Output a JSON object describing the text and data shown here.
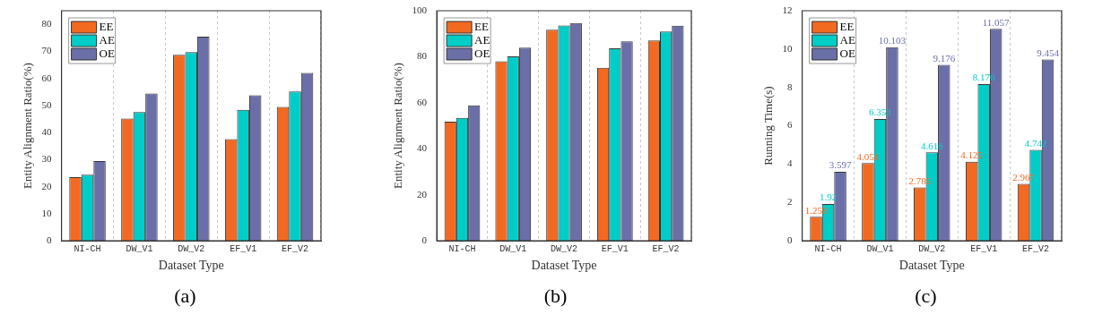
{
  "chart_data": [
    {
      "type": "bar",
      "xlabel": "Dataset Type",
      "ylabel": "Entity Alignment Ratio(%)",
      "categories": [
        "NI-CH",
        "DW_V1",
        "DW_V2",
        "EF_V1",
        "EF_V2"
      ],
      "series": [
        {
          "name": "EE",
          "color": "#f26a21",
          "values": [
            23.5,
            45.2,
            68.7,
            37.6,
            49.5
          ]
        },
        {
          "name": "AE",
          "color": "#00cdc8",
          "values": [
            24.4,
            47.6,
            69.7,
            48.4,
            55.2
          ]
        },
        {
          "name": "OE",
          "color": "#6b6fa8",
          "values": [
            29.5,
            54.4,
            75.4,
            53.8,
            62.0
          ]
        }
      ],
      "ylim": [
        0,
        85
      ],
      "yticks": [
        0,
        10,
        20,
        30,
        40,
        50,
        60,
        70,
        80
      ],
      "grid": "x",
      "legend": "top left",
      "annotations": [
        "(a)"
      ]
    },
    {
      "type": "bar",
      "xlabel": "Dataset Type",
      "ylabel": "Entity Alignment Ratio(%)",
      "categories": [
        "NI-CH",
        "DW_V1",
        "DW_V2",
        "EF_V1",
        "EF_V2"
      ],
      "series": [
        {
          "name": "EE",
          "color": "#f26a21",
          "values": [
            51.8,
            78.0,
            91.7,
            75.2,
            87.1
          ]
        },
        {
          "name": "AE",
          "color": "#00cdc8",
          "values": [
            53.4,
            80.2,
            93.6,
            83.7,
            91.0
          ]
        },
        {
          "name": "OE",
          "color": "#6b6fa8",
          "values": [
            58.9,
            84.0,
            94.7,
            86.7,
            93.5
          ]
        }
      ],
      "ylim": [
        0,
        100
      ],
      "yticks": [
        0,
        20,
        40,
        60,
        80,
        100
      ],
      "grid": "x",
      "legend": "top left",
      "annotations": [
        "(b)"
      ]
    },
    {
      "type": "bar",
      "xlabel": "Dataset Type",
      "ylabel": "Running Time(s)",
      "categories": [
        "NI-CH",
        "DW_V1",
        "DW_V2",
        "EF_V1",
        "EF_V2"
      ],
      "series": [
        {
          "name": "EE",
          "color": "#f26a21",
          "values": [
            1.258,
            4.054,
            2.785,
            4.125,
            2.967
          ]
        },
        {
          "name": "AE",
          "color": "#00cdc8",
          "values": [
            1.92,
            6.353,
            4.616,
            8.176,
            4.742
          ]
        },
        {
          "name": "OE",
          "color": "#6b6fa8",
          "values": [
            3.597,
            10.103,
            9.176,
            11.057,
            9.454
          ]
        }
      ],
      "ylim": [
        0,
        12
      ],
      "yticks": [
        0,
        2,
        4,
        6,
        8,
        10,
        12
      ],
      "grid": "x",
      "legend": "top left",
      "data_labels": true,
      "annotations": [
        "(c)"
      ]
    }
  ]
}
